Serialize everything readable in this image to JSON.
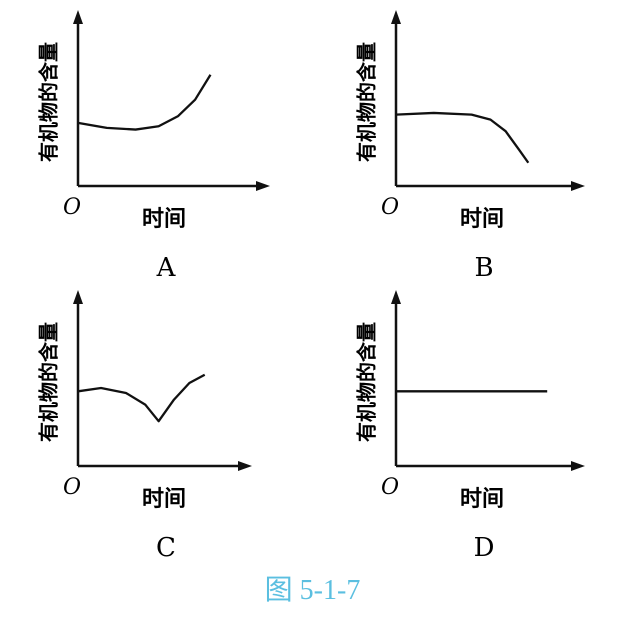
{
  "caption": "图 5-1-7",
  "caption_color": "#5bbfe0",
  "chart_data": [
    {
      "type": "line",
      "panel_label": "A",
      "ylabel": "有机物的含量",
      "xlabel": "时间",
      "origin_label": "O",
      "xlim": [
        0,
        1
      ],
      "ylim": [
        0,
        1
      ],
      "grid": false,
      "x": [
        0,
        0.15,
        0.3,
        0.42,
        0.52,
        0.61,
        0.69
      ],
      "y": [
        0.38,
        0.35,
        0.34,
        0.36,
        0.42,
        0.52,
        0.67
      ]
    },
    {
      "type": "line",
      "panel_label": "B",
      "ylabel": "有机物的含量",
      "xlabel": "时间",
      "origin_label": "O",
      "xlim": [
        0,
        1
      ],
      "ylim": [
        0,
        1
      ],
      "grid": false,
      "x": [
        0,
        0.2,
        0.4,
        0.5,
        0.58,
        0.65,
        0.7
      ],
      "y": [
        0.43,
        0.44,
        0.43,
        0.4,
        0.33,
        0.22,
        0.14
      ]
    },
    {
      "type": "line",
      "panel_label": "C",
      "ylabel": "有机物的含量",
      "xlabel": "时间",
      "origin_label": "O",
      "xlim": [
        0,
        1
      ],
      "ylim": [
        0,
        1
      ],
      "grid": false,
      "x": [
        0,
        0.12,
        0.25,
        0.35,
        0.42,
        0.5,
        0.58,
        0.66
      ],
      "y": [
        0.45,
        0.47,
        0.44,
        0.37,
        0.27,
        0.4,
        0.5,
        0.55
      ]
    },
    {
      "type": "line",
      "panel_label": "D",
      "ylabel": "有机物的含量",
      "xlabel": "时间",
      "origin_label": "O",
      "xlim": [
        0,
        1
      ],
      "ylim": [
        0,
        1
      ],
      "grid": false,
      "x": [
        0,
        0.8
      ],
      "y": [
        0.45,
        0.45
      ]
    }
  ]
}
